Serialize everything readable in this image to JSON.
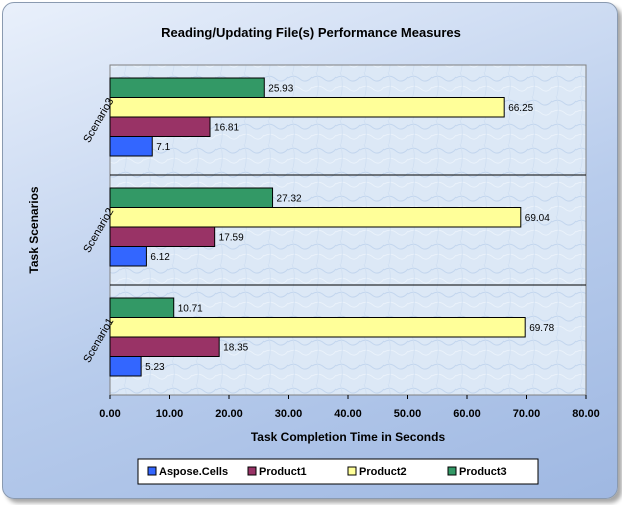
{
  "chart_data": {
    "type": "bar",
    "orientation": "horizontal",
    "title": "Reading/Updating File(s) Performance Measures",
    "xlabel": "Task Completion Time in Seconds",
    "ylabel": "Task Scenarios",
    "xlim": [
      0,
      80
    ],
    "xticks": [
      "0.00",
      "10.00",
      "20.00",
      "30.00",
      "40.00",
      "50.00",
      "60.00",
      "70.00",
      "80.00"
    ],
    "categories": [
      "Scenario1",
      "Scenario2",
      "Scenario3"
    ],
    "series": [
      {
        "name": "Aspose.Cells",
        "color": "#3366ff",
        "values": [
          5.23,
          6.12,
          7.1
        ],
        "labels": [
          "5.23",
          "6.12",
          "7.1"
        ]
      },
      {
        "name": "Product1",
        "color": "#993366",
        "values": [
          18.35,
          17.59,
          16.81
        ],
        "labels": [
          "18.35",
          "17.59",
          "16.81"
        ]
      },
      {
        "name": "Product2",
        "color": "#ffff99",
        "values": [
          69.78,
          69.04,
          66.25
        ],
        "labels": [
          "69.78",
          "69.04",
          "66.25"
        ]
      },
      {
        "name": "Product3",
        "color": "#339966",
        "values": [
          10.71,
          27.32,
          25.93
        ],
        "labels": [
          "10.71",
          "27.32",
          "25.93"
        ]
      }
    ],
    "legend_position": "bottom",
    "grid": false
  }
}
